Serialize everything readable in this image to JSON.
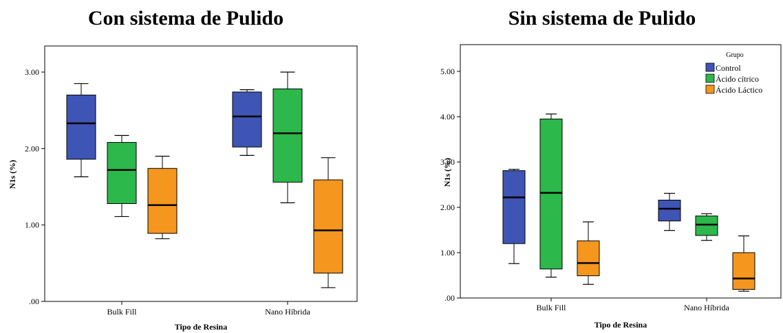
{
  "chart_data": [
    {
      "type": "box",
      "title": "Con sistema de Pulido",
      "xlabel": "Tipo de Resina",
      "ylabel": "N1s (%)",
      "ylim": [
        0,
        3.0
      ],
      "yticks": [
        ".00",
        "1.00",
        "2.00",
        "3.00"
      ],
      "ytick_values": [
        0,
        1,
        2,
        3
      ],
      "categories": [
        "Bulk Fill",
        "Nano Híbrida"
      ],
      "series": [
        {
          "name": "Control",
          "color": "#3e55b5",
          "boxes": [
            {
              "min": 1.63,
              "q1": 1.86,
              "median": 2.33,
              "q3": 2.7,
              "max": 2.85
            },
            {
              "min": 1.91,
              "q1": 2.02,
              "median": 2.42,
              "q3": 2.74,
              "max": 2.77
            }
          ]
        },
        {
          "name": "Ácido cítrico",
          "color": "#2cb84a",
          "boxes": [
            {
              "min": 1.11,
              "q1": 1.28,
              "median": 1.72,
              "q3": 2.08,
              "max": 2.17
            },
            {
              "min": 1.29,
              "q1": 1.56,
              "median": 2.2,
              "q3": 2.78,
              "max": 3.0
            }
          ]
        },
        {
          "name": "Ácido Láctico",
          "color": "#f5961e",
          "boxes": [
            {
              "min": 0.82,
              "q1": 0.89,
              "median": 1.26,
              "q3": 1.74,
              "max": 1.9
            },
            {
              "min": 0.18,
              "q1": 0.37,
              "median": 0.93,
              "q3": 1.59,
              "max": 1.88
            }
          ]
        }
      ]
    },
    {
      "type": "box",
      "title": "Sin sistema de Pulido",
      "xlabel": "Tipo de Resina",
      "ylabel": "N1s (%)",
      "ylim": [
        0,
        5.0
      ],
      "yticks": [
        ".00",
        "1.00",
        "2.00",
        "3.00",
        "4.00",
        "5.00"
      ],
      "ytick_values": [
        0,
        1,
        2,
        3,
        4,
        5
      ],
      "categories": [
        "Bulk Fill",
        "Nano Híbrida"
      ],
      "legend": {
        "title": "Grupo",
        "position": "top-right"
      },
      "series": [
        {
          "name": "Control",
          "color": "#3e55b5",
          "boxes": [
            {
              "min": 0.76,
              "q1": 1.2,
              "median": 2.22,
              "q3": 2.81,
              "max": 2.84
            },
            {
              "min": 1.49,
              "q1": 1.7,
              "median": 1.97,
              "q3": 2.16,
              "max": 2.31
            }
          ]
        },
        {
          "name": "Ácido cítrico",
          "color": "#2cb84a",
          "boxes": [
            {
              "min": 0.46,
              "q1": 0.64,
              "median": 2.32,
              "q3": 3.95,
              "max": 4.06
            },
            {
              "min": 1.27,
              "q1": 1.38,
              "median": 1.62,
              "q3": 1.81,
              "max": 1.86
            }
          ]
        },
        {
          "name": "Ácido Láctico",
          "color": "#f5961e",
          "boxes": [
            {
              "min": 0.3,
              "q1": 0.49,
              "median": 0.77,
              "q3": 1.26,
              "max": 1.68
            },
            {
              "min": 0.15,
              "q1": 0.19,
              "median": 0.43,
              "q3": 1.0,
              "max": 1.37
            }
          ]
        }
      ]
    }
  ]
}
